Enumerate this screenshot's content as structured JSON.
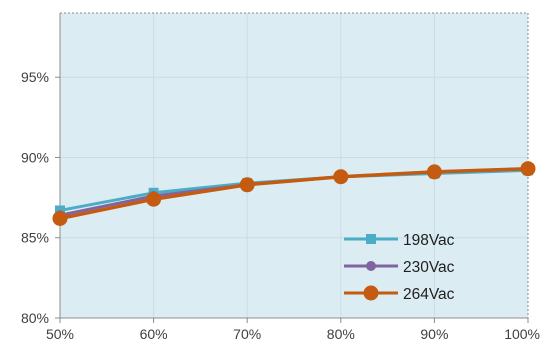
{
  "chart_data": {
    "type": "line",
    "title": "",
    "xlabel": "",
    "ylabel": "",
    "categories": [
      "50%",
      "60%",
      "70%",
      "80%",
      "90%",
      "100%"
    ],
    "ylim": [
      80,
      99
    ],
    "y_ticks": [
      80,
      85,
      90,
      95
    ],
    "y_tick_labels": [
      "80%",
      "85%",
      "90%",
      "95%"
    ],
    "grid": true,
    "legend_position": "bottom-right",
    "plot_background": "#dbedf3",
    "series": [
      {
        "name": "198Vac",
        "color": "#4bacc6",
        "marker": "square",
        "values": [
          86.7,
          87.8,
          88.4,
          88.8,
          89.0,
          89.2
        ]
      },
      {
        "name": "230Vac",
        "color": "#8064a2",
        "marker": "circle",
        "values": [
          86.4,
          87.6,
          88.3,
          88.8,
          89.1,
          89.3
        ]
      },
      {
        "name": "264Vac",
        "color": "#c55a11",
        "marker": "circle-large",
        "values": [
          86.2,
          87.4,
          88.3,
          88.8,
          89.1,
          89.3
        ]
      }
    ]
  }
}
